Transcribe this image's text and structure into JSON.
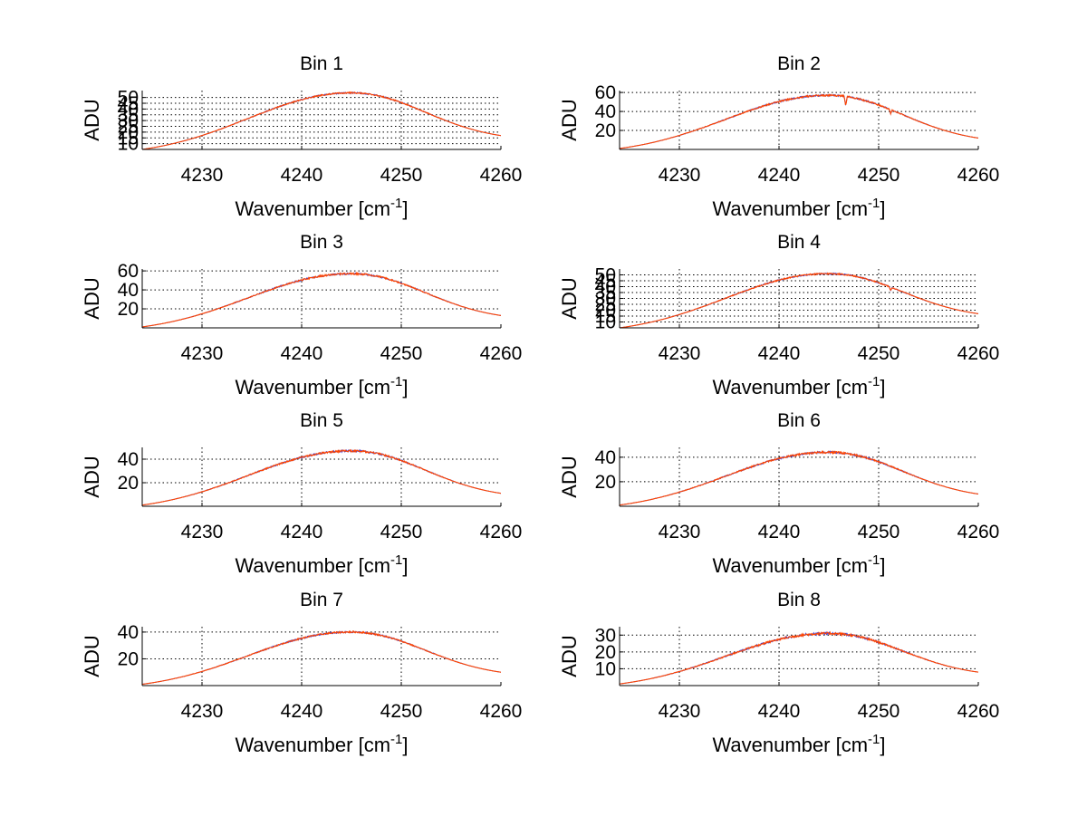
{
  "chart_data": [
    {
      "type": "line",
      "title": "Bin 1",
      "xlabel": "Wavenumber [cm",
      "xlabel_sup": "-1",
      "xlabel_end": "]",
      "ylabel": "ADU",
      "xlim": [
        4224,
        4260
      ],
      "ylim": [
        5,
        56
      ],
      "xticks": [
        4230,
        4240,
        4250,
        4260
      ],
      "yticks": [
        10,
        15,
        20,
        25,
        30,
        35,
        40,
        45,
        50
      ],
      "yticklabels": [
        "10",
        "15",
        "20",
        "25",
        "30",
        "35",
        "40",
        "45",
        "50"
      ],
      "grid": true,
      "peak": {
        "x": 4245,
        "y": 54
      },
      "edges": {
        "left": 5,
        "right": 17
      },
      "noise": 0.6,
      "dips": []
    },
    {
      "type": "line",
      "title": "Bin 2",
      "xlabel": "Wavenumber [cm",
      "xlabel_sup": "-1",
      "xlabel_end": "]",
      "ylabel": "ADU",
      "xlim": [
        4224,
        4260
      ],
      "ylim": [
        0,
        62
      ],
      "xticks": [
        4230,
        4240,
        4250,
        4260
      ],
      "yticks": [
        20,
        40,
        60
      ],
      "yticklabels": [
        "20",
        "40",
        "60"
      ],
      "grid": true,
      "peak": {
        "x": 4245,
        "y": 57
      },
      "edges": {
        "left": 1,
        "right": 12
      },
      "noise": 0.9,
      "dips": [
        {
          "x": 4246.7,
          "depth": 10
        },
        {
          "x": 4251.2,
          "depth": 4
        }
      ]
    },
    {
      "type": "line",
      "title": "Bin 3",
      "xlabel": "Wavenumber [cm",
      "xlabel_sup": "-1",
      "xlabel_end": "]",
      "ylabel": "ADU",
      "xlim": [
        4224,
        4260
      ],
      "ylim": [
        0,
        62
      ],
      "xticks": [
        4230,
        4240,
        4250,
        4260
      ],
      "yticks": [
        20,
        40,
        60
      ],
      "yticklabels": [
        "20",
        "40",
        "60"
      ],
      "grid": true,
      "peak": {
        "x": 4245,
        "y": 57
      },
      "edges": {
        "left": 1,
        "right": 13
      },
      "noise": 0.9,
      "dips": []
    },
    {
      "type": "line",
      "title": "Bin 4",
      "xlabel": "Wavenumber [cm",
      "xlabel_sup": "-1",
      "xlabel_end": "]",
      "ylabel": "ADU",
      "xlim": [
        4224,
        4260
      ],
      "ylim": [
        5,
        55
      ],
      "xticks": [
        4230,
        4240,
        4250,
        4260
      ],
      "yticks": [
        10,
        15,
        20,
        25,
        30,
        35,
        40,
        45,
        50
      ],
      "yticklabels": [
        "10",
        "15",
        "20",
        "25",
        "30",
        "35",
        "40",
        "45",
        "50"
      ],
      "grid": true,
      "peak": {
        "x": 4245,
        "y": 51
      },
      "edges": {
        "left": 5,
        "right": 17
      },
      "noise": 0.6,
      "dips": [
        {
          "x": 4251.2,
          "depth": 3
        }
      ]
    },
    {
      "type": "line",
      "title": "Bin 5",
      "xlabel": "Wavenumber [cm",
      "xlabel_sup": "-1",
      "xlabel_end": "]",
      "ylabel": "ADU",
      "xlim": [
        4224,
        4260
      ],
      "ylim": [
        0,
        50
      ],
      "xticks": [
        4230,
        4240,
        4250,
        4260
      ],
      "yticks": [
        20,
        40
      ],
      "yticklabels": [
        "20",
        "40"
      ],
      "grid": true,
      "peak": {
        "x": 4245,
        "y": 47
      },
      "edges": {
        "left": 1,
        "right": 11
      },
      "noise": 0.8,
      "dips": []
    },
    {
      "type": "line",
      "title": "Bin 6",
      "xlabel": "Wavenumber [cm",
      "xlabel_sup": "-1",
      "xlabel_end": "]",
      "ylabel": "ADU",
      "xlim": [
        4224,
        4260
      ],
      "ylim": [
        0,
        48
      ],
      "xticks": [
        4230,
        4240,
        4250,
        4260
      ],
      "yticks": [
        20,
        40
      ],
      "yticklabels": [
        "20",
        "40"
      ],
      "grid": true,
      "peak": {
        "x": 4245,
        "y": 44
      },
      "edges": {
        "left": 1,
        "right": 10
      },
      "noise": 0.8,
      "dips": []
    },
    {
      "type": "line",
      "title": "Bin 7",
      "xlabel": "Wavenumber [cm",
      "xlabel_sup": "-1",
      "xlabel_end": "]",
      "ylabel": "ADU",
      "xlim": [
        4224,
        4260
      ],
      "ylim": [
        0,
        44
      ],
      "xticks": [
        4230,
        4240,
        4250,
        4260
      ],
      "yticks": [
        20,
        40
      ],
      "yticklabels": [
        "20",
        "40"
      ],
      "grid": true,
      "peak": {
        "x": 4245,
        "y": 40
      },
      "edges": {
        "left": 1,
        "right": 10
      },
      "noise": 0.6,
      "dips": []
    },
    {
      "type": "line",
      "title": "Bin 8",
      "xlabel": "Wavenumber [cm",
      "xlabel_sup": "-1",
      "xlabel_end": "]",
      "ylabel": "ADU",
      "xlim": [
        4224,
        4260
      ],
      "ylim": [
        0,
        35
      ],
      "xticks": [
        4230,
        4240,
        4250,
        4260
      ],
      "yticks": [
        10,
        20,
        30
      ],
      "yticklabels": [
        "10",
        "20",
        "30"
      ],
      "grid": true,
      "peak": {
        "x": 4245,
        "y": 31
      },
      "edges": {
        "left": 1,
        "right": 8
      },
      "noise": 0.7,
      "dips": []
    }
  ],
  "colors": {
    "series_main": "#ff4500",
    "series_secondary": "#3b3bd6",
    "grid": "#000000",
    "axis": "#000000"
  }
}
